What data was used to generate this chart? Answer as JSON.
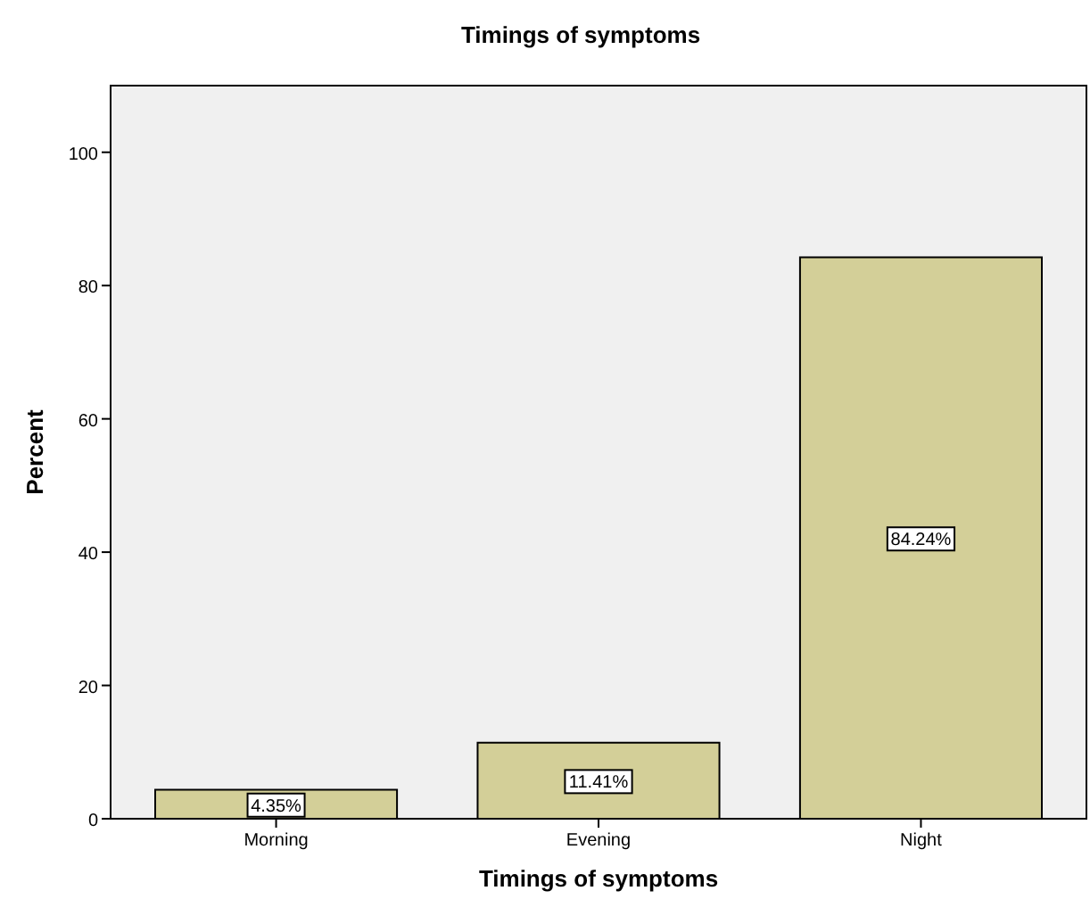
{
  "chart_data": {
    "type": "bar",
    "title": "Timings of symptoms",
    "xlabel": "Timings of symptoms",
    "ylabel": "Percent",
    "categories": [
      "Morning",
      "Evening",
      "Night"
    ],
    "values": [
      4.35,
      11.41,
      84.24
    ],
    "value_labels": [
      "4.35%",
      "11.41%",
      "84.24%"
    ],
    "color": "#d3cf98",
    "ylim": [
      0,
      110
    ],
    "yticks": [
      0,
      20,
      40,
      60,
      80,
      100
    ],
    "grid": false
  }
}
